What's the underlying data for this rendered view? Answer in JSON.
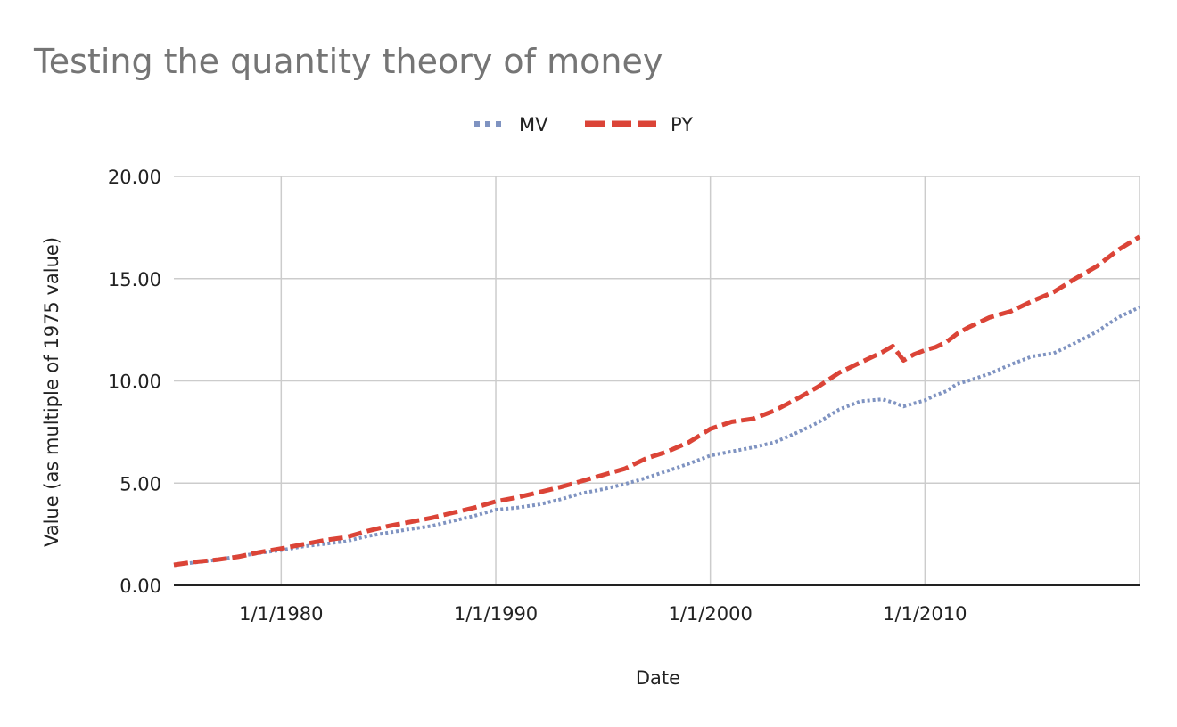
{
  "chart_data": {
    "type": "line",
    "title": "Testing the quantity theory of money",
    "xlabel": "Date",
    "ylabel": "Value (as multiple of 1975 value)",
    "x_ticks": [
      "1/1/1980",
      "1/1/1990",
      "1/1/2000",
      "1/1/2010"
    ],
    "y_ticks": [
      "0.00",
      "5.00",
      "10.00",
      "15.00",
      "20.00"
    ],
    "xlim": [
      "1975-01-01",
      "2020-01-01"
    ],
    "ylim": [
      0,
      20
    ],
    "grid": true,
    "legend_position": "top",
    "x": [
      "1975-01-01",
      "1976-01-01",
      "1977-01-01",
      "1978-01-01",
      "1979-01-01",
      "1980-01-01",
      "1981-01-01",
      "1982-01-01",
      "1983-01-01",
      "1984-01-01",
      "1985-01-01",
      "1986-01-01",
      "1987-01-01",
      "1988-01-01",
      "1989-01-01",
      "1990-01-01",
      "1991-01-01",
      "1992-01-01",
      "1993-01-01",
      "1994-01-01",
      "1995-01-01",
      "1996-01-01",
      "1997-01-01",
      "1998-01-01",
      "1999-01-01",
      "2000-01-01",
      "2001-01-01",
      "2002-01-01",
      "2003-01-01",
      "2004-01-01",
      "2005-01-01",
      "2006-01-01",
      "2007-01-01",
      "2008-01-01",
      "2008-07-01",
      "2009-01-01",
      "2009-07-01",
      "2010-01-01",
      "2010-07-01",
      "2011-01-01",
      "2011-07-01",
      "2012-01-01",
      "2013-01-01",
      "2014-01-01",
      "2015-01-01",
      "2016-01-01",
      "2017-01-01",
      "2018-01-01",
      "2019-01-01",
      "2020-01-01"
    ],
    "series": [
      {
        "name": "MV",
        "color": "#7f93c1",
        "style": "dotted",
        "values": [
          1.0,
          1.12,
          1.25,
          1.42,
          1.58,
          1.72,
          1.9,
          2.02,
          2.15,
          2.4,
          2.58,
          2.75,
          2.9,
          3.15,
          3.4,
          3.7,
          3.8,
          3.95,
          4.2,
          4.5,
          4.7,
          4.95,
          5.25,
          5.6,
          5.95,
          6.35,
          6.55,
          6.75,
          7.0,
          7.45,
          7.95,
          8.6,
          9.0,
          9.1,
          8.95,
          8.75,
          8.9,
          9.05,
          9.3,
          9.5,
          9.85,
          10.0,
          10.35,
          10.8,
          11.2,
          11.35,
          11.85,
          12.4,
          13.1,
          13.6
        ]
      },
      {
        "name": "PY",
        "color": "#db4437",
        "style": "dashed",
        "values": [
          1.0,
          1.15,
          1.25,
          1.4,
          1.62,
          1.8,
          2.0,
          2.2,
          2.35,
          2.65,
          2.9,
          3.1,
          3.3,
          3.55,
          3.8,
          4.1,
          4.3,
          4.55,
          4.8,
          5.1,
          5.4,
          5.7,
          6.2,
          6.55,
          7.0,
          7.65,
          8.0,
          8.15,
          8.55,
          9.1,
          9.7,
          10.4,
          10.9,
          11.4,
          11.7,
          11.0,
          11.3,
          11.5,
          11.65,
          11.9,
          12.3,
          12.6,
          13.1,
          13.4,
          13.9,
          14.35,
          15.0,
          15.6,
          16.4,
          17.05
        ]
      }
    ]
  }
}
